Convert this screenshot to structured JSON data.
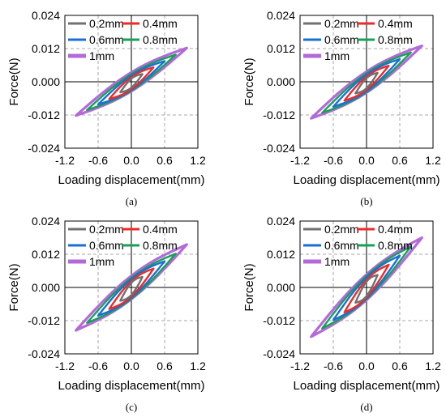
{
  "colors": {
    "0.2mm": "#707070",
    "0.4mm": "#ee2a2a",
    "0.6mm": "#1a6fd6",
    "0.8mm": "#17a05a",
    "1mm": "#b36ad8",
    "grid": "#a8a8a8",
    "axis": "#000000"
  },
  "chart_data": [
    {
      "type": "line",
      "panel_label": "(a)",
      "xlabel": "Loading displacement(mm)",
      "ylabel": "Force(N)",
      "xlim": [
        -1.2,
        1.2
      ],
      "ylim": [
        -0.024,
        0.024
      ],
      "xticks": [
        "-1.2",
        "-0.6",
        "0.0",
        "0.6",
        "1.2"
      ],
      "yticks": [
        "0.024",
        "0.012",
        "0.000",
        "-0.012",
        "-0.024"
      ],
      "grid": "dashed at ±0.6 mm and ±0.012 N",
      "legend": [
        "0.2mm",
        "0.4mm",
        "0.6mm",
        "0.8mm",
        "1mm"
      ],
      "legend_position": "top-left",
      "series": [
        {
          "name": "0.2mm",
          "amplitude": 0.2,
          "force_at_max": 0.0028,
          "force_at_min": -0.0038,
          "loop_half_width": 0.0016
        },
        {
          "name": "0.4mm",
          "amplitude": 0.4,
          "force_at_max": 0.0052,
          "force_at_min": -0.0062,
          "loop_half_width": 0.0022
        },
        {
          "name": "0.6mm",
          "amplitude": 0.6,
          "force_at_max": 0.0075,
          "force_at_min": -0.0082,
          "loop_half_width": 0.0026
        },
        {
          "name": "0.8mm",
          "amplitude": 0.8,
          "force_at_max": 0.0098,
          "force_at_min": -0.0102,
          "loop_half_width": 0.003
        },
        {
          "name": "1mm",
          "amplitude": 1.0,
          "force_at_max": 0.0122,
          "force_at_min": -0.0122,
          "loop_half_width": 0.0034
        }
      ]
    },
    {
      "type": "line",
      "panel_label": "(b)",
      "xlabel": "Loading displacement(mm)",
      "ylabel": "Force(N)",
      "xlim": [
        -1.2,
        1.2
      ],
      "ylim": [
        -0.024,
        0.024
      ],
      "xticks": [
        "-1.2",
        "-0.6",
        "0.0",
        "0.6",
        "1.2"
      ],
      "yticks": [
        "0.024",
        "0.012",
        "0.000",
        "-0.012",
        "-0.024"
      ],
      "grid": "dashed at ±0.6 mm and ±0.012 N",
      "legend": [
        "0.2mm",
        "0.4mm",
        "0.6mm",
        "0.8mm",
        "1mm"
      ],
      "legend_position": "top-left",
      "series": [
        {
          "name": "0.2mm",
          "amplitude": 0.2,
          "force_at_max": 0.0032,
          "force_at_min": -0.0042,
          "loop_half_width": 0.0018
        },
        {
          "name": "0.4mm",
          "amplitude": 0.4,
          "force_at_max": 0.0058,
          "force_at_min": -0.0068,
          "loop_half_width": 0.0024
        },
        {
          "name": "0.6mm",
          "amplitude": 0.6,
          "force_at_max": 0.0082,
          "force_at_min": -0.009,
          "loop_half_width": 0.003
        },
        {
          "name": "0.8mm",
          "amplitude": 0.8,
          "force_at_max": 0.0106,
          "force_at_min": -0.0112,
          "loop_half_width": 0.0034
        },
        {
          "name": "1mm",
          "amplitude": 1.0,
          "force_at_max": 0.013,
          "force_at_min": -0.0132,
          "loop_half_width": 0.0038
        }
      ]
    },
    {
      "type": "line",
      "panel_label": "(c)",
      "xlabel": "Loading displacement(mm)",
      "ylabel": "Force(N)",
      "xlim": [
        -1.2,
        1.2
      ],
      "ylim": [
        -0.024,
        0.024
      ],
      "xticks": [
        "-1.2",
        "-0.6",
        "0.0",
        "0.6",
        "1.2"
      ],
      "yticks": [
        "0.024",
        "0.012",
        "0.000",
        "-0.012",
        "-0.024"
      ],
      "grid": "dashed at ±0.6 mm and ±0.012 N",
      "legend": [
        "0.2mm",
        "0.4mm",
        "0.6mm",
        "0.8mm",
        "1mm"
      ],
      "legend_position": "top-left",
      "series": [
        {
          "name": "0.2mm",
          "amplitude": 0.2,
          "force_at_max": 0.0038,
          "force_at_min": -0.0048,
          "loop_half_width": 0.0022
        },
        {
          "name": "0.4mm",
          "amplitude": 0.4,
          "force_at_max": 0.0068,
          "force_at_min": -0.0078,
          "loop_half_width": 0.0028
        },
        {
          "name": "0.6mm",
          "amplitude": 0.6,
          "force_at_max": 0.0095,
          "force_at_min": -0.0102,
          "loop_half_width": 0.0034
        },
        {
          "name": "0.8mm",
          "amplitude": 0.8,
          "force_at_max": 0.0122,
          "force_at_min": -0.0128,
          "loop_half_width": 0.0038
        },
        {
          "name": "1mm",
          "amplitude": 1.0,
          "force_at_max": 0.0155,
          "force_at_min": -0.0155,
          "loop_half_width": 0.0042
        }
      ]
    },
    {
      "type": "line",
      "panel_label": "(d)",
      "xlabel": "Loading displacement(mm)",
      "ylabel": "Force(N)",
      "xlim": [
        -1.2,
        1.2
      ],
      "ylim": [
        -0.024,
        0.024
      ],
      "xticks": [
        "-1.2",
        "-0.6",
        "0.0",
        "0.6",
        "1.2"
      ],
      "yticks": [
        "0.024",
        "0.012",
        "0.000",
        "-0.012",
        "-0.024"
      ],
      "grid": "dashed at ±0.6 mm and ±0.012 N",
      "legend": [
        "0.2mm",
        "0.4mm",
        "0.6mm",
        "0.8mm",
        "1mm"
      ],
      "legend_position": "top-left",
      "series": [
        {
          "name": "0.2mm",
          "amplitude": 0.2,
          "force_at_max": 0.0045,
          "force_at_min": -0.0055,
          "loop_half_width": 0.0026
        },
        {
          "name": "0.4mm",
          "amplitude": 0.4,
          "force_at_max": 0.0082,
          "force_at_min": -0.009,
          "loop_half_width": 0.0032
        },
        {
          "name": "0.6mm",
          "amplitude": 0.6,
          "force_at_max": 0.0115,
          "force_at_min": -0.0118,
          "loop_half_width": 0.0038
        },
        {
          "name": "0.8mm",
          "amplitude": 0.8,
          "force_at_max": 0.0148,
          "force_at_min": -0.0148,
          "loop_half_width": 0.0042
        },
        {
          "name": "1mm",
          "amplitude": 1.0,
          "force_at_max": 0.018,
          "force_at_min": -0.0178,
          "loop_half_width": 0.0046
        }
      ]
    }
  ]
}
